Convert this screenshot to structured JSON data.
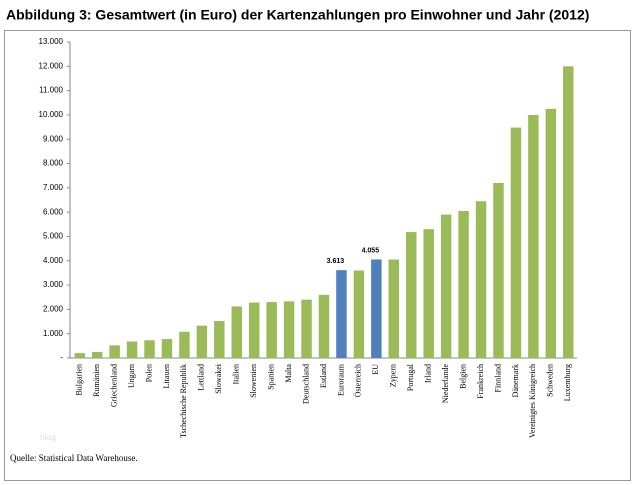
{
  "chart_data": {
    "type": "bar",
    "title": "Abbildung 3: Gesamtwert (in Euro) der Kartenzahlungen pro Einwohner und Jahr (2012)",
    "categories": [
      "Bulgarien",
      "Rumänien",
      "Griechenland",
      "Ungarn",
      "Polen",
      "Litauen",
      "Tschechische Republik",
      "Lettland",
      "Slowakei",
      "Italien",
      "Slowenien",
      "Spanien",
      "Malta",
      "Deutschland",
      "Estland",
      "Euroraum",
      "Österreich",
      "EU",
      "Zypern",
      "Portugal",
      "Irland",
      "Niederlande",
      "Belgien",
      "Frankreich",
      "Finnland",
      "Dänemark",
      "Vereinigtes Königreich",
      "Schweden",
      "Luxemburg"
    ],
    "values": [
      200,
      250,
      520,
      680,
      730,
      780,
      1080,
      1330,
      1520,
      2120,
      2280,
      2300,
      2330,
      2400,
      2600,
      3613,
      3600,
      4055,
      4050,
      5180,
      5300,
      5900,
      6050,
      6450,
      7200,
      9480,
      10000,
      10250,
      12000
    ],
    "value_labels": [
      null,
      null,
      null,
      null,
      null,
      null,
      null,
      null,
      null,
      null,
      null,
      null,
      null,
      null,
      null,
      "3.613",
      null,
      "4.055",
      null,
      null,
      null,
      null,
      null,
      null,
      null,
      null,
      null,
      null,
      null
    ],
    "colors": [
      "#9bbb59",
      "#9bbb59",
      "#9bbb59",
      "#9bbb59",
      "#9bbb59",
      "#9bbb59",
      "#9bbb59",
      "#9bbb59",
      "#9bbb59",
      "#9bbb59",
      "#9bbb59",
      "#9bbb59",
      "#9bbb59",
      "#9bbb59",
      "#9bbb59",
      "#4f81bd",
      "#9bbb59",
      "#4f81bd",
      "#9bbb59",
      "#9bbb59",
      "#9bbb59",
      "#9bbb59",
      "#9bbb59",
      "#9bbb59",
      "#9bbb59",
      "#9bbb59",
      "#9bbb59",
      "#9bbb59",
      "#9bbb59"
    ],
    "ylim": [
      0,
      13000
    ],
    "yticks": [
      {
        "value": 0,
        "label": "-"
      },
      {
        "value": 1000,
        "label": "1.000"
      },
      {
        "value": 2000,
        "label": "2.000"
      },
      {
        "value": 3000,
        "label": "3.000"
      },
      {
        "value": 4000,
        "label": "4.000"
      },
      {
        "value": 5000,
        "label": "5.000"
      },
      {
        "value": 6000,
        "label": "6.000"
      },
      {
        "value": 7000,
        "label": "7.000"
      },
      {
        "value": 8000,
        "label": "8.000"
      },
      {
        "value": 9000,
        "label": "9.000"
      },
      {
        "value": 10000,
        "label": "10.000"
      },
      {
        "value": 11000,
        "label": "11.000"
      },
      {
        "value": 12000,
        "label": "12.000"
      },
      {
        "value": 13000,
        "label": "13.000"
      }
    ],
    "grid": false,
    "watermark": "blog",
    "source": "Quelle: Statistical Data Warehouse."
  }
}
